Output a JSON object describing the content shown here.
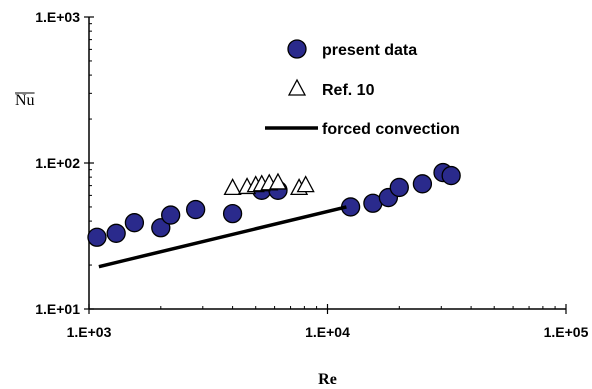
{
  "chart_data": {
    "type": "scatter",
    "xscale": "log",
    "yscale": "log",
    "xlim": [
      1000,
      100000
    ],
    "ylim": [
      10,
      1000
    ],
    "xlabel": "Re",
    "ylabel": "Nu",
    "xticks": [
      "1.E+03",
      "1.E+04",
      "1.E+05"
    ],
    "yticks": [
      "1.E+03",
      "1.E+02",
      "1.E+01"
    ],
    "grid": false,
    "legend_position": "top-right",
    "colors": {
      "present_fill": "#2a2a8c",
      "present_edge": "#000000",
      "ref_fill": "#ffffff",
      "ref_edge": "#000000",
      "line": "#000000"
    },
    "series": [
      {
        "name": "present data",
        "marker": "circle",
        "x": [
          1080,
          1300,
          1550,
          2000,
          2200,
          2800,
          4000,
          5300,
          6200,
          12500,
          15500,
          18000,
          20000,
          25000,
          30500,
          33000
        ],
        "y": [
          31,
          33,
          39,
          36,
          44,
          48,
          45,
          65,
          65,
          50,
          53,
          58,
          68,
          72,
          86,
          82
        ]
      },
      {
        "name": "Ref. 10",
        "marker": "triangle",
        "x": [
          4000,
          4600,
          5000,
          5300,
          5700,
          6200,
          7600,
          8100
        ],
        "y": [
          67,
          68,
          70,
          71,
          72,
          73,
          67,
          70
        ]
      },
      {
        "name": "forced convection",
        "marker": "line",
        "x": [
          1100,
          12000
        ],
        "y": [
          19.5,
          50
        ]
      }
    ]
  }
}
